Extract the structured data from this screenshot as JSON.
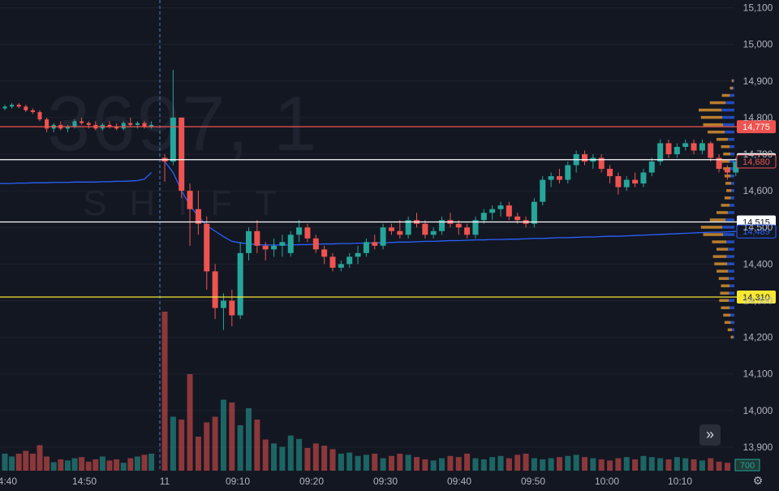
{
  "watermark": {
    "symbol": "3697, 1",
    "sub": "SHIFT"
  },
  "colors": {
    "background": "#131722",
    "up": "#26a69a",
    "down": "#ef5350",
    "vwap": "#2962ff",
    "grid": "#1e222d",
    "axis_text": "#b2b5be"
  },
  "icons": {
    "scroll_button": "double-chevron-right-icon",
    "settings": "gear-icon"
  },
  "scroll_button_label": "»",
  "settings_glyph": "⚙",
  "chart_data": {
    "type": "candlestick",
    "x_ticks": [
      "14:40",
      "14:50",
      "11",
      "09:10",
      "09:20",
      "09:30",
      "09:40",
      "09:50",
      "10:00",
      "10:10"
    ],
    "y_range": [
      13880,
      15110
    ],
    "y_ticks": [
      "15,100",
      "15,000",
      "14,900",
      "14,800",
      "14,700",
      "14,600",
      "14,500",
      "14,400",
      "14,300",
      "14,200",
      "14,100",
      "14,000",
      "13,900"
    ],
    "y_tick_values": [
      15100,
      15000,
      14900,
      14800,
      14700,
      14600,
      14500,
      14400,
      14300,
      14200,
      14100,
      14000,
      13900
    ],
    "price_lines": [
      {
        "value": 14775,
        "label": "14,775",
        "color": "#ef5350",
        "label_bg": "#ef5350",
        "label_fg": "#ffffff"
      },
      {
        "value": 14685,
        "label": "14,685",
        "color": "#ffffff",
        "label_bg": "#ffffff",
        "label_fg": "#131722"
      },
      {
        "value": 14515,
        "label": "14,515",
        "color": "#ffffff",
        "label_bg": "#ffffff",
        "label_fg": "#131722"
      },
      {
        "value": 14310,
        "label": "14,310",
        "color": "#f7e733",
        "label_bg": "#f7e733",
        "label_fg": "#131722"
      }
    ],
    "axis_badges": [
      {
        "value": 14680,
        "label": "14,680",
        "color": "#ef5350"
      },
      {
        "value": 14489,
        "label": "14,489",
        "color": "#2962ff"
      }
    ],
    "volume_label": "700",
    "session_break_index": 22,
    "candles": [
      [
        14825,
        14835,
        14820,
        14830
      ],
      [
        14830,
        14840,
        14825,
        14835
      ],
      [
        14835,
        14840,
        14825,
        14830
      ],
      [
        14830,
        14835,
        14815,
        14820
      ],
      [
        14820,
        14825,
        14810,
        14815
      ],
      [
        14815,
        14820,
        14790,
        14795
      ],
      [
        14795,
        14800,
        14760,
        14770
      ],
      [
        14770,
        14785,
        14760,
        14780
      ],
      [
        14780,
        14790,
        14765,
        14770
      ],
      [
        14770,
        14780,
        14760,
        14775
      ],
      [
        14775,
        14795,
        14770,
        14790
      ],
      [
        14790,
        14800,
        14780,
        14785
      ],
      [
        14785,
        14790,
        14770,
        14780
      ],
      [
        14780,
        14790,
        14765,
        14770
      ],
      [
        14770,
        14785,
        14765,
        14780
      ],
      [
        14780,
        14790,
        14770,
        14775
      ],
      [
        14775,
        14785,
        14765,
        14770
      ],
      [
        14770,
        14790,
        14765,
        14785
      ],
      [
        14785,
        14800,
        14775,
        14780
      ],
      [
        14780,
        14790,
        14770,
        14785
      ],
      [
        14785,
        14790,
        14770,
        14775
      ],
      [
        14775,
        14790,
        14770,
        14780
      ],
      [
        14690,
        14700,
        14625,
        14680
      ],
      [
        14680,
        14930,
        14670,
        14800
      ],
      [
        14800,
        14800,
        14580,
        14600
      ],
      [
        14600,
        14620,
        14450,
        14550
      ],
      [
        14550,
        14600,
        14480,
        14510
      ],
      [
        14510,
        14530,
        14330,
        14380
      ],
      [
        14380,
        14400,
        14250,
        14280
      ],
      [
        14280,
        14320,
        14220,
        14300
      ],
      [
        14300,
        14330,
        14230,
        14260
      ],
      [
        14260,
        14460,
        14250,
        14430
      ],
      [
        14430,
        14500,
        14410,
        14490
      ],
      [
        14490,
        14520,
        14430,
        14450
      ],
      [
        14450,
        14460,
        14410,
        14440
      ],
      [
        14440,
        14470,
        14420,
        14450
      ],
      [
        14450,
        14480,
        14420,
        14460
      ],
      [
        14430,
        14490,
        14420,
        14480
      ],
      [
        14480,
        14520,
        14460,
        14500
      ],
      [
        14500,
        14510,
        14460,
        14470
      ],
      [
        14470,
        14480,
        14430,
        14440
      ],
      [
        14440,
        14450,
        14400,
        14420
      ],
      [
        14420,
        14430,
        14380,
        14390
      ],
      [
        14390,
        14410,
        14380,
        14400
      ],
      [
        14400,
        14430,
        14390,
        14420
      ],
      [
        14420,
        14450,
        14400,
        14430
      ],
      [
        14430,
        14470,
        14420,
        14460
      ],
      [
        14460,
        14480,
        14440,
        14450
      ],
      [
        14450,
        14510,
        14440,
        14500
      ],
      [
        14500,
        14510,
        14480,
        14490
      ],
      [
        14490,
        14520,
        14470,
        14480
      ],
      [
        14480,
        14530,
        14470,
        14520
      ],
      [
        14520,
        14540,
        14500,
        14510
      ],
      [
        14510,
        14520,
        14470,
        14480
      ],
      [
        14480,
        14500,
        14470,
        14490
      ],
      [
        14490,
        14530,
        14480,
        14520
      ],
      [
        14520,
        14540,
        14500,
        14510
      ],
      [
        14510,
        14520,
        14480,
        14500
      ],
      [
        14500,
        14510,
        14470,
        14480
      ],
      [
        14480,
        14530,
        14470,
        14520
      ],
      [
        14520,
        14550,
        14510,
        14540
      ],
      [
        14540,
        14560,
        14520,
        14550
      ],
      [
        14550,
        14570,
        14530,
        14560
      ],
      [
        14560,
        14570,
        14520,
        14530
      ],
      [
        14530,
        14540,
        14510,
        14520
      ],
      [
        14520,
        14530,
        14500,
        14510
      ],
      [
        14510,
        14580,
        14500,
        14570
      ],
      [
        14570,
        14640,
        14560,
        14630
      ],
      [
        14630,
        14650,
        14610,
        14640
      ],
      [
        14640,
        14660,
        14620,
        14630
      ],
      [
        14630,
        14680,
        14620,
        14670
      ],
      [
        14670,
        14710,
        14650,
        14700
      ],
      [
        14700,
        14710,
        14670,
        14680
      ],
      [
        14680,
        14700,
        14660,
        14690
      ],
      [
        14690,
        14700,
        14650,
        14660
      ],
      [
        14660,
        14670,
        14620,
        14640
      ],
      [
        14640,
        14650,
        14590,
        14610
      ],
      [
        14610,
        14640,
        14600,
        14630
      ],
      [
        14630,
        14650,
        14610,
        14620
      ],
      [
        14620,
        14660,
        14610,
        14650
      ],
      [
        14650,
        14690,
        14640,
        14680
      ],
      [
        14680,
        14740,
        14670,
        14730
      ],
      [
        14730,
        14740,
        14690,
        14700
      ],
      [
        14700,
        14730,
        14690,
        14720
      ],
      [
        14720,
        14740,
        14710,
        14730
      ],
      [
        14730,
        14740,
        14700,
        14710
      ],
      [
        14710,
        14740,
        14700,
        14730
      ],
      [
        14730,
        14735,
        14680,
        14690
      ],
      [
        14690,
        14700,
        14650,
        14660
      ],
      [
        14660,
        14670,
        14630,
        14650
      ],
      [
        14650,
        14690,
        14640,
        14680
      ]
    ],
    "volumes": [
      30,
      25,
      30,
      35,
      30,
      45,
      25,
      15,
      20,
      18,
      22,
      24,
      16,
      20,
      25,
      18,
      20,
      14,
      22,
      25,
      28,
      30,
      280,
      95,
      90,
      170,
      60,
      85,
      95,
      125,
      120,
      80,
      110,
      90,
      55,
      48,
      42,
      62,
      56,
      40,
      48,
      44,
      38,
      30,
      32,
      26,
      28,
      30,
      22,
      26,
      30,
      28,
      24,
      20,
      18,
      22,
      26,
      24,
      30,
      22,
      20,
      24,
      26,
      22,
      28,
      30,
      22,
      20,
      22,
      24,
      26,
      28,
      24,
      22,
      20,
      18,
      22,
      24,
      20,
      26,
      24,
      22,
      20,
      24,
      22,
      20,
      18,
      22,
      16,
      14
    ],
    "volume_profile": [
      [
        14900,
        6
      ],
      [
        14880,
        10
      ],
      [
        14860,
        28
      ],
      [
        14840,
        55
      ],
      [
        14820,
        80
      ],
      [
        14800,
        75
      ],
      [
        14780,
        70
      ],
      [
        14760,
        60
      ],
      [
        14740,
        40
      ],
      [
        14720,
        30
      ],
      [
        14700,
        25
      ],
      [
        14680,
        30
      ],
      [
        14660,
        25
      ],
      [
        14640,
        22
      ],
      [
        14620,
        20
      ],
      [
        14600,
        18
      ],
      [
        14580,
        22
      ],
      [
        14560,
        30
      ],
      [
        14540,
        40
      ],
      [
        14520,
        55
      ],
      [
        14500,
        75
      ],
      [
        14480,
        70
      ],
      [
        14460,
        50
      ],
      [
        14440,
        40
      ],
      [
        14420,
        48
      ],
      [
        14400,
        45
      ],
      [
        14380,
        40
      ],
      [
        14360,
        35
      ],
      [
        14340,
        30
      ],
      [
        14320,
        32
      ],
      [
        14300,
        34
      ],
      [
        14280,
        30
      ],
      [
        14260,
        25
      ],
      [
        14240,
        22
      ],
      [
        14220,
        15
      ],
      [
        14200,
        8
      ]
    ],
    "vwap_pre": [
      14620,
      14620,
      14621,
      14621,
      14622,
      14622,
      14622,
      14623,
      14623,
      14623,
      14624,
      14624,
      14624,
      14624,
      14625,
      14625,
      14626,
      14626,
      14627,
      14628,
      14632,
      14650
    ],
    "vwap_post": [
      14680,
      14650,
      14600,
      14560,
      14530,
      14505,
      14490,
      14475,
      14462,
      14458,
      14455,
      14453,
      14452,
      14452,
      14452,
      14452,
      14453,
      14453,
      14454,
      14455,
      14455,
      14456,
      14456,
      14457,
      14457,
      14458,
      14458,
      14459,
      14460,
      14460,
      14461,
      14462,
      14462,
      14463,
      14464,
      14464,
      14465,
      14466,
      14466,
      14467,
      14467,
      14468,
      14468,
      14469,
      14470,
      14470,
      14471,
      14472,
      14472,
      14473,
      14474,
      14474,
      14475,
      14476,
      14476,
      14477,
      14478,
      14479,
      14480,
      14481,
      14482,
      14483,
      14484,
      14485,
      14486,
      14487,
      14487,
      14488,
      14489
    ]
  }
}
